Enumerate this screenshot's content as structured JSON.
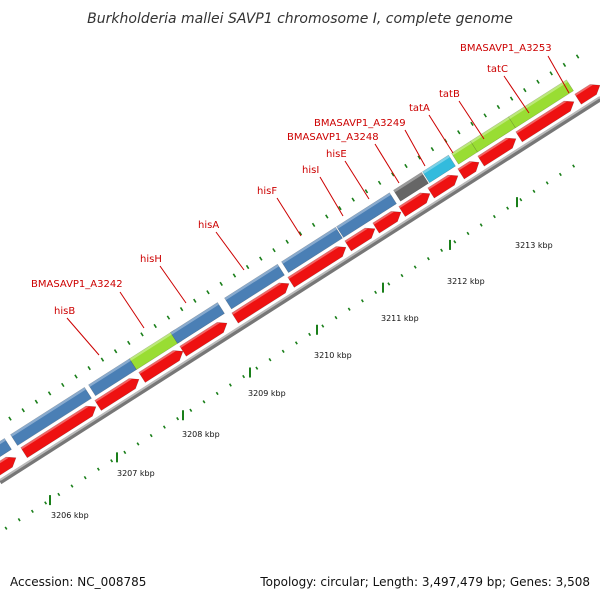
{
  "title": "Burkholderia mallei SAVP1 chromosome I, complete genome",
  "footer": {
    "accession": "Accession: NC_008785",
    "topology": "Topology: circular; Length: 3,497,479 bp; Genes: 3,508"
  },
  "colors": {
    "cds_blue": "#4a7fb5",
    "cds_green": "#99dd33",
    "cds_gray": "#666666",
    "cds_cyan": "#33bbdd",
    "orf_red": "#ee1111",
    "backbone": "#999999",
    "tick": "#1a7f1a",
    "label": "#cc0000"
  },
  "scale_labels": [
    "3206 kbp",
    "3207 kbp",
    "3208 kbp",
    "3209 kbp",
    "3210 kbp",
    "3211 kbp",
    "3212 kbp",
    "3213 kbp"
  ],
  "gene_labels": [
    "hisB",
    "BMASAVP1_A3242",
    "hisH",
    "hisA",
    "hisF",
    "hisI",
    "hisE",
    "BMASAVP1_A3248",
    "BMASAVP1_A3249",
    "tatA",
    "tatB",
    "tatC",
    "BMASAVP1_A3253"
  ]
}
